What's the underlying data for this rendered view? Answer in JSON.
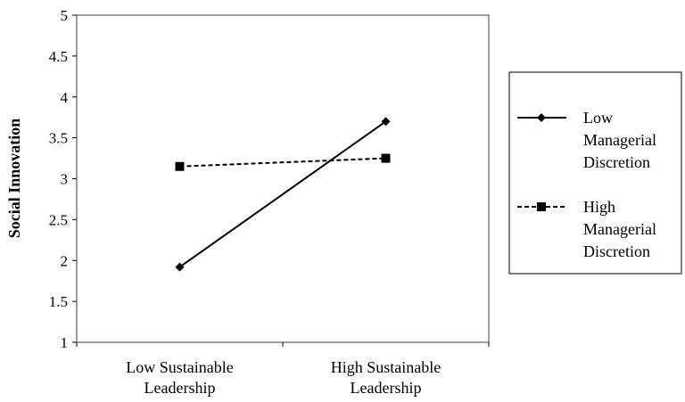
{
  "chart_data": {
    "type": "line",
    "categories": [
      "Low Sustainable Leadership",
      "High Sustainable Leadership"
    ],
    "category_lines": [
      [
        "Low Sustainable",
        "Leadership"
      ],
      [
        "High Sustainable",
        "Leadership"
      ]
    ],
    "series": [
      {
        "name": "Low Managerial Discretion",
        "name_lines": [
          "Low",
          "Managerial",
          "Discretion"
        ],
        "values": [
          1.92,
          3.7
        ],
        "line_style": "solid",
        "marker": "diamond",
        "color": "#000000"
      },
      {
        "name": "High Managerial Discretion",
        "name_lines": [
          "High",
          "Managerial",
          "Discretion"
        ],
        "values": [
          3.15,
          3.25
        ],
        "line_style": "dashed",
        "marker": "square",
        "color": "#000000"
      }
    ],
    "ylabel": "Social Innovation",
    "xlabel": "",
    "title": "",
    "ylim": [
      1,
      5
    ],
    "yticks": [
      "1",
      "1.5",
      "2",
      "2.5",
      "3",
      "3.5",
      "4",
      "4.5",
      "5"
    ],
    "grid": false,
    "legend_position": "right"
  }
}
